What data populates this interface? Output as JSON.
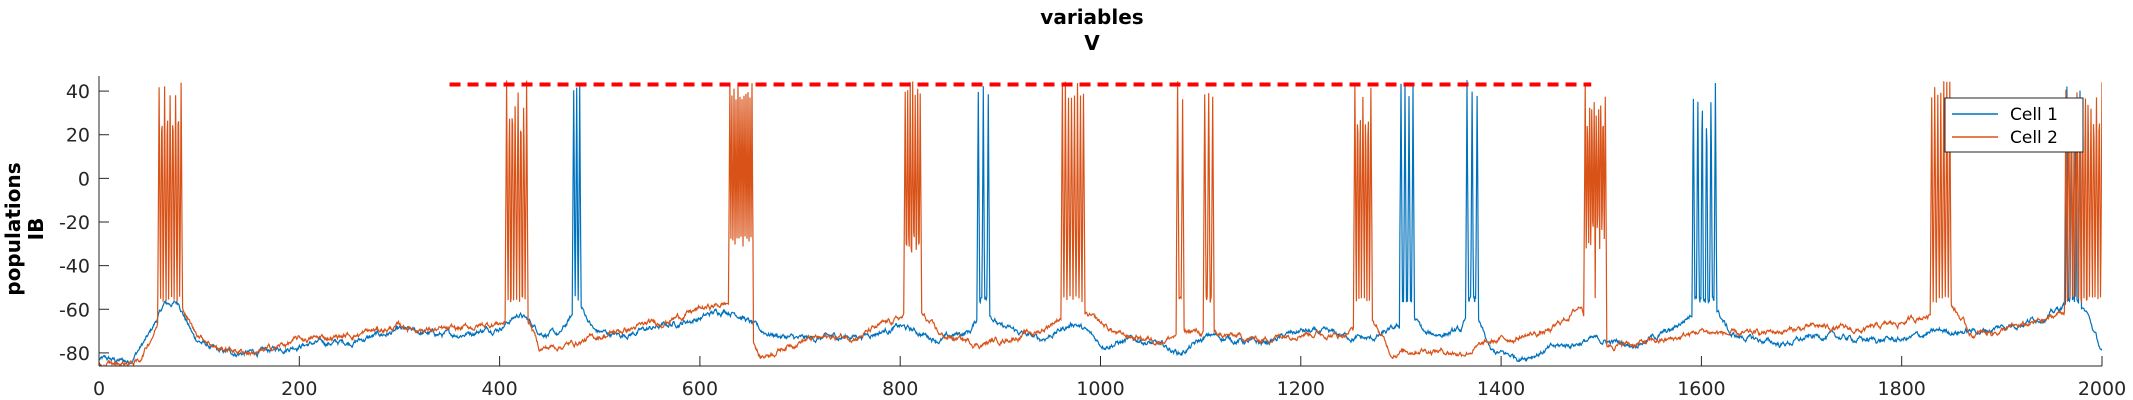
{
  "chart_data": {
    "type": "line",
    "title": "variables",
    "subtitle": "V",
    "ylabel": "populations",
    "ylabel2": "IB",
    "xlabel": "",
    "xlim": [
      0,
      2000
    ],
    "ylim": [
      -86,
      46
    ],
    "xticks": [
      "0",
      "200",
      "400",
      "600",
      "800",
      "1000",
      "1200",
      "1400",
      "1600",
      "1800",
      "2000"
    ],
    "yticks": [
      "40",
      "20",
      "0",
      "-20",
      "-40",
      "-60",
      "-80"
    ],
    "grid": false,
    "legend_position": "top-right",
    "reference_line": {
      "y": 43,
      "x_start": 350,
      "x_end": 1490,
      "style": "dashed",
      "color": "#ff0000"
    },
    "series": [
      {
        "name": "Cell 1",
        "color": "#0072bd",
        "baseline": [
          [
            0,
            -83
          ],
          [
            30,
            -84
          ],
          [
            50,
            -72
          ],
          [
            65,
            -58
          ],
          [
            80,
            -57
          ],
          [
            95,
            -73
          ],
          [
            120,
            -80
          ],
          [
            160,
            -80
          ],
          [
            200,
            -76
          ],
          [
            250,
            -75
          ],
          [
            300,
            -70
          ],
          [
            350,
            -72
          ],
          [
            400,
            -68
          ],
          [
            420,
            -62
          ],
          [
            440,
            -70
          ],
          [
            460,
            -72
          ],
          [
            480,
            -58
          ],
          [
            495,
            -70
          ],
          [
            520,
            -72
          ],
          [
            560,
            -68
          ],
          [
            600,
            -64
          ],
          [
            625,
            -60
          ],
          [
            640,
            -62
          ],
          [
            660,
            -70
          ],
          [
            700,
            -74
          ],
          [
            760,
            -72
          ],
          [
            800,
            -68
          ],
          [
            840,
            -74
          ],
          [
            870,
            -70
          ],
          [
            885,
            -58
          ],
          [
            900,
            -68
          ],
          [
            940,
            -74
          ],
          [
            975,
            -66
          ],
          [
            1000,
            -76
          ],
          [
            1040,
            -74
          ],
          [
            1080,
            -80
          ],
          [
            1110,
            -72
          ],
          [
            1160,
            -76
          ],
          [
            1200,
            -70
          ],
          [
            1240,
            -72
          ],
          [
            1270,
            -74
          ],
          [
            1300,
            -68
          ],
          [
            1310,
            -62
          ],
          [
            1325,
            -72
          ],
          [
            1360,
            -70
          ],
          [
            1372,
            -60
          ],
          [
            1390,
            -80
          ],
          [
            1420,
            -82
          ],
          [
            1450,
            -78
          ],
          [
            1490,
            -74
          ],
          [
            1530,
            -76
          ],
          [
            1570,
            -70
          ],
          [
            1590,
            -62
          ],
          [
            1615,
            -60
          ],
          [
            1630,
            -72
          ],
          [
            1680,
            -76
          ],
          [
            1720,
            -72
          ],
          [
            1760,
            -74
          ],
          [
            1800,
            -74
          ],
          [
            1840,
            -70
          ],
          [
            1880,
            -70
          ],
          [
            1920,
            -66
          ],
          [
            1950,
            -62
          ],
          [
            1970,
            -56
          ],
          [
            1985,
            -62
          ],
          [
            2000,
            -80
          ]
        ],
        "bursts": [
          [
            474,
            480,
            3
          ],
          [
            878,
            888,
            3
          ],
          [
            1300,
            1312,
            4
          ],
          [
            1366,
            1376,
            3
          ],
          [
            1592,
            1614,
            6
          ],
          [
            1965,
            1978,
            4
          ]
        ]
      },
      {
        "name": "Cell 2",
        "color": "#d95319",
        "baseline": [
          [
            0,
            -86
          ],
          [
            40,
            -84
          ],
          [
            55,
            -70
          ],
          [
            70,
            -56
          ],
          [
            80,
            -56
          ],
          [
            95,
            -70
          ],
          [
            120,
            -78
          ],
          [
            160,
            -80
          ],
          [
            200,
            -74
          ],
          [
            250,
            -72
          ],
          [
            300,
            -68
          ],
          [
            350,
            -70
          ],
          [
            400,
            -66
          ],
          [
            430,
            -66
          ],
          [
            440,
            -78
          ],
          [
            470,
            -76
          ],
          [
            520,
            -70
          ],
          [
            560,
            -66
          ],
          [
            600,
            -60
          ],
          [
            620,
            -58
          ],
          [
            640,
            -56
          ],
          [
            660,
            -82
          ],
          [
            700,
            -74
          ],
          [
            760,
            -72
          ],
          [
            800,
            -64
          ],
          [
            820,
            -62
          ],
          [
            840,
            -72
          ],
          [
            880,
            -76
          ],
          [
            940,
            -70
          ],
          [
            970,
            -60
          ],
          [
            990,
            -64
          ],
          [
            1020,
            -72
          ],
          [
            1060,
            -74
          ],
          [
            1090,
            -70
          ],
          [
            1120,
            -72
          ],
          [
            1160,
            -74
          ],
          [
            1200,
            -70
          ],
          [
            1240,
            -72
          ],
          [
            1270,
            -64
          ],
          [
            1290,
            -80
          ],
          [
            1320,
            -78
          ],
          [
            1360,
            -80
          ],
          [
            1400,
            -74
          ],
          [
            1450,
            -70
          ],
          [
            1480,
            -58
          ],
          [
            1495,
            -76
          ],
          [
            1530,
            -76
          ],
          [
            1570,
            -74
          ],
          [
            1600,
            -70
          ],
          [
            1640,
            -72
          ],
          [
            1680,
            -70
          ],
          [
            1720,
            -68
          ],
          [
            1760,
            -70
          ],
          [
            1800,
            -66
          ],
          [
            1830,
            -62
          ],
          [
            1850,
            -58
          ],
          [
            1870,
            -72
          ],
          [
            1920,
            -68
          ],
          [
            1950,
            -64
          ],
          [
            1970,
            -58
          ],
          [
            1990,
            -60
          ],
          [
            2000,
            -84
          ]
        ],
        "bursts": [
          [
            60,
            82,
            9
          ],
          [
            407,
            427,
            8
          ],
          [
            630,
            652,
            12
          ],
          [
            805,
            820,
            7
          ],
          [
            962,
            983,
            8
          ],
          [
            1077,
            1082,
            2
          ],
          [
            1104,
            1112,
            3
          ],
          [
            1254,
            1270,
            7
          ],
          [
            1484,
            1504,
            10
          ],
          [
            1830,
            1848,
            7
          ],
          [
            1964,
            2000,
            14
          ]
        ]
      }
    ]
  }
}
